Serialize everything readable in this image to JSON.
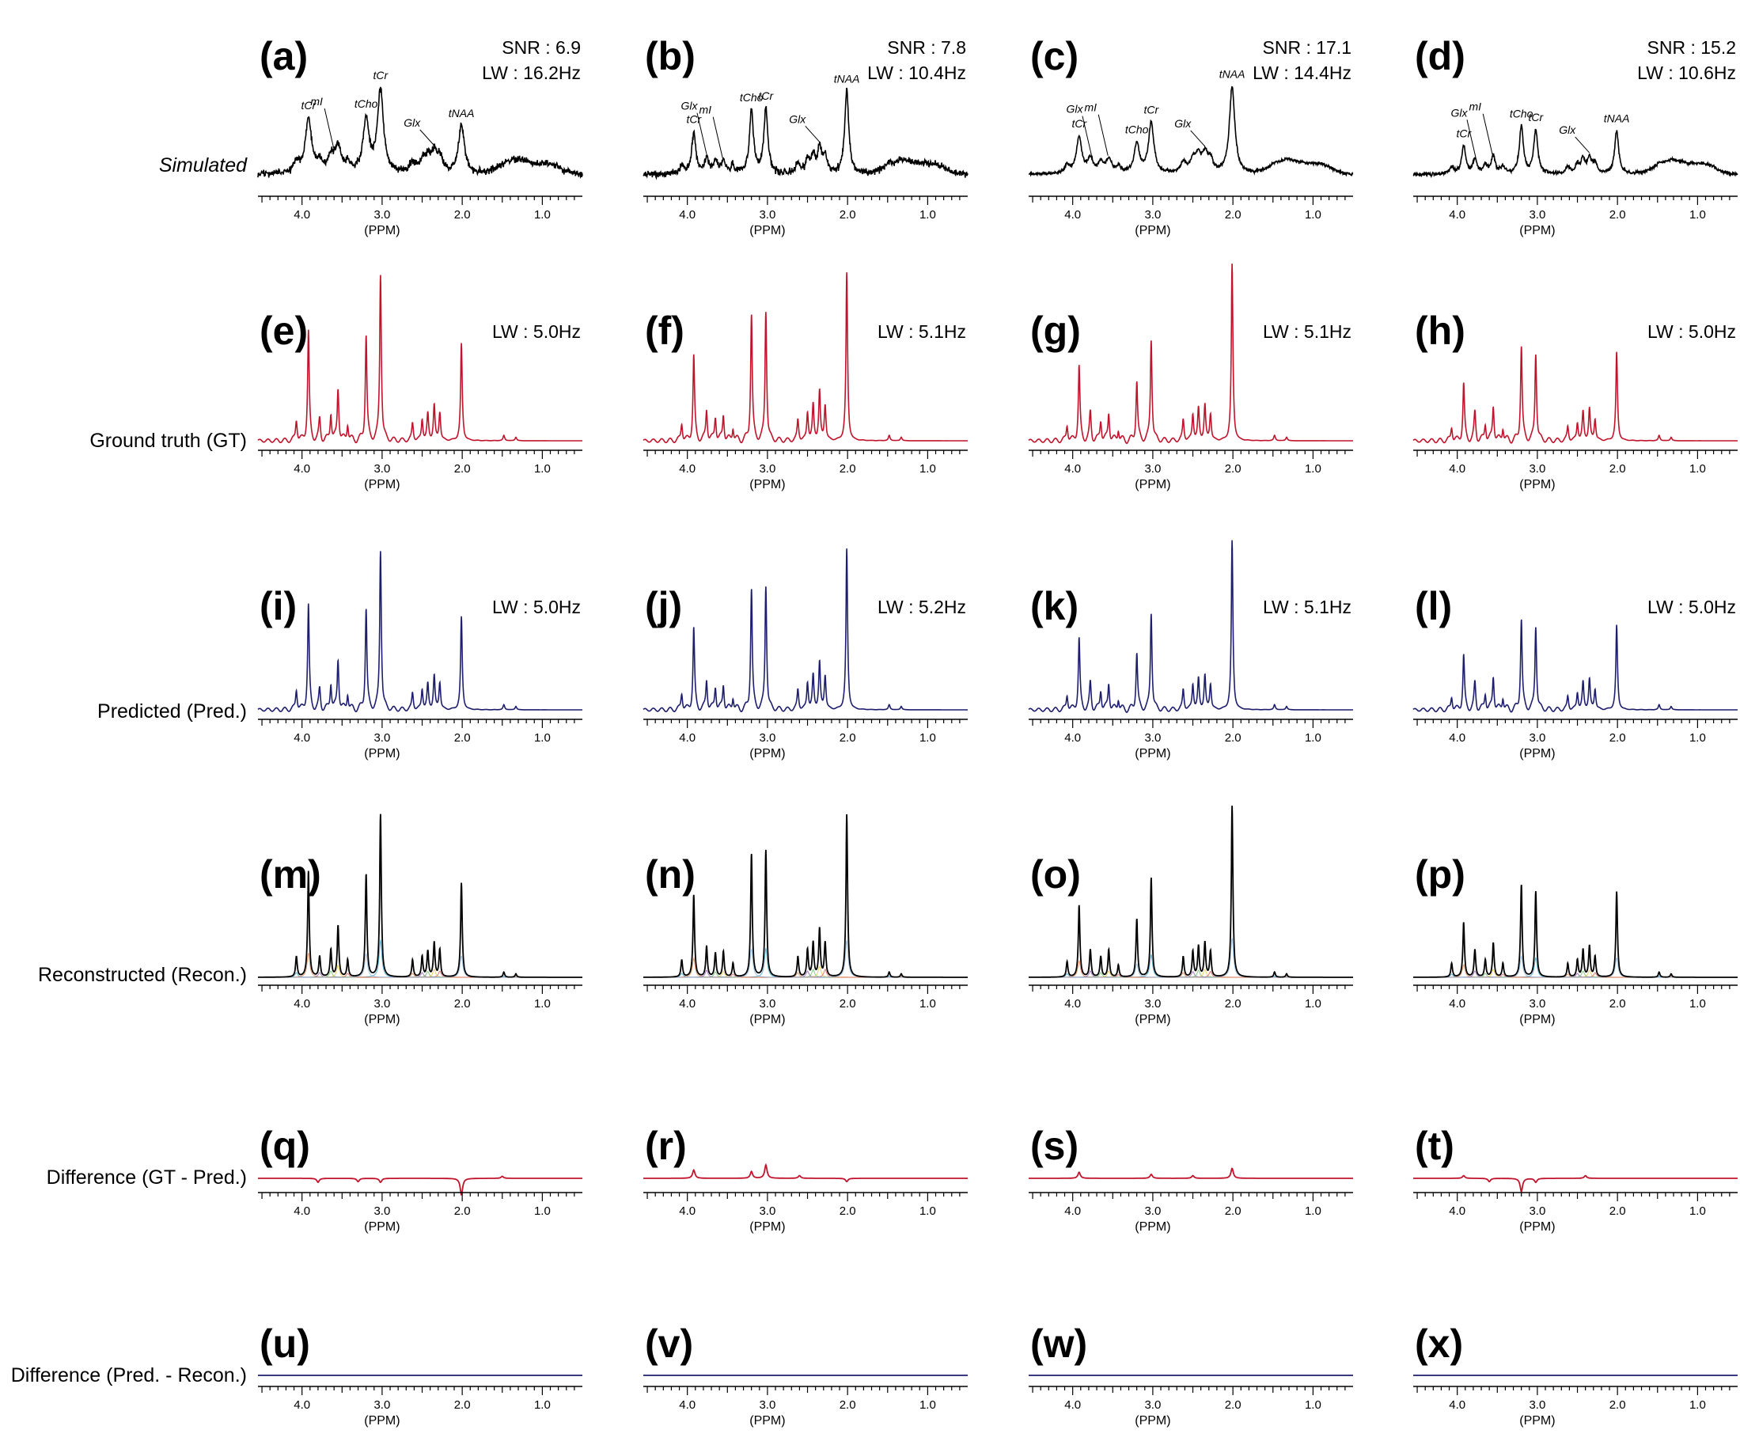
{
  "chart_data": {
    "type": "line",
    "x_axis": {
      "label": "(PPM)",
      "range": [
        4.55,
        0.5
      ],
      "reversed": true,
      "major_ticks": [
        4.0,
        3.0,
        2.0,
        1.0
      ],
      "tick_labels": [
        "4.0",
        "3.0",
        "2.0",
        "1.0"
      ]
    },
    "grid": false,
    "row_labels": [
      "Simulated",
      "Ground truth (GT)",
      "Predicted (Pred.)",
      "Reconstructed (Recon.)",
      "Difference (GT - Pred.)",
      "Difference (Pred. - Recon.)"
    ],
    "row_colors": [
      "#000000",
      "#c0142c",
      "#1e1e6e",
      "#000000",
      "#c0142c",
      "#1e1e6e"
    ],
    "panels": [
      {
        "label": "(a)",
        "row": 0,
        "col": 0,
        "snr": "SNR : 6.9",
        "lw": "LW : 16.2Hz"
      },
      {
        "label": "(b)",
        "row": 0,
        "col": 1,
        "snr": "SNR : 7.8",
        "lw": "LW : 10.4Hz"
      },
      {
        "label": "(c)",
        "row": 0,
        "col": 2,
        "snr": "SNR : 17.1",
        "lw": "LW : 14.4Hz"
      },
      {
        "label": "(d)",
        "row": 0,
        "col": 3,
        "snr": "SNR : 15.2",
        "lw": "LW : 10.6Hz"
      },
      {
        "label": "(e)",
        "row": 1,
        "col": 0,
        "lw": "LW : 5.0Hz"
      },
      {
        "label": "(f)",
        "row": 1,
        "col": 1,
        "lw": "LW : 5.1Hz"
      },
      {
        "label": "(g)",
        "row": 1,
        "col": 2,
        "lw": "LW : 5.1Hz"
      },
      {
        "label": "(h)",
        "row": 1,
        "col": 3,
        "lw": "LW : 5.0Hz"
      },
      {
        "label": "(i)",
        "row": 2,
        "col": 0,
        "lw": "LW : 5.0Hz"
      },
      {
        "label": "(j)",
        "row": 2,
        "col": 1,
        "lw": "LW : 5.2Hz"
      },
      {
        "label": "(k)",
        "row": 2,
        "col": 2,
        "lw": "LW : 5.1Hz"
      },
      {
        "label": "(l)",
        "row": 2,
        "col": 3,
        "lw": "LW : 5.0Hz"
      },
      {
        "label": "(m)",
        "row": 3,
        "col": 0
      },
      {
        "label": "(n)",
        "row": 3,
        "col": 1
      },
      {
        "label": "(o)",
        "row": 3,
        "col": 2
      },
      {
        "label": "(p)",
        "row": 3,
        "col": 3
      },
      {
        "label": "(q)",
        "row": 4,
        "col": 0
      },
      {
        "label": "(r)",
        "row": 4,
        "col": 1
      },
      {
        "label": "(s)",
        "row": 4,
        "col": 2
      },
      {
        "label": "(t)",
        "row": 4,
        "col": 3
      },
      {
        "label": "(u)",
        "row": 5,
        "col": 0
      },
      {
        "label": "(v)",
        "row": 5,
        "col": 1
      },
      {
        "label": "(w)",
        "row": 5,
        "col": 2
      },
      {
        "label": "(x)",
        "row": 5,
        "col": 3
      }
    ],
    "peak_annotations": [
      [
        {
          "text": "tCr",
          "ppm": 3.92
        },
        {
          "text": "mI",
          "ppm": 3.6
        },
        {
          "text": "tCho",
          "ppm": 3.2
        },
        {
          "text": "tCr",
          "ppm": 3.02
        },
        {
          "text": "Glx",
          "ppm": 2.35
        },
        {
          "text": "tNAA",
          "ppm": 2.01
        }
      ],
      [
        {
          "text": "tCr",
          "ppm": 3.92
        },
        {
          "text": "Glx",
          "ppm": 3.76
        },
        {
          "text": "mI",
          "ppm": 3.56
        },
        {
          "text": "tCho",
          "ppm": 3.2
        },
        {
          "text": "tCr",
          "ppm": 3.02
        },
        {
          "text": "Glx",
          "ppm": 2.35
        },
        {
          "text": "tNAA",
          "ppm": 2.01
        }
      ],
      [
        {
          "text": "tCr",
          "ppm": 3.92
        },
        {
          "text": "Glx",
          "ppm": 3.76
        },
        {
          "text": "mI",
          "ppm": 3.56
        },
        {
          "text": "tCho",
          "ppm": 3.2
        },
        {
          "text": "tCr",
          "ppm": 3.02
        },
        {
          "text": "Glx",
          "ppm": 2.35
        },
        {
          "text": "tNAA",
          "ppm": 2.01
        }
      ],
      [
        {
          "text": "tCr",
          "ppm": 3.92
        },
        {
          "text": "Glx",
          "ppm": 3.76
        },
        {
          "text": "mI",
          "ppm": 3.56
        },
        {
          "text": "tCho",
          "ppm": 3.2
        },
        {
          "text": "tCr",
          "ppm": 3.02
        },
        {
          "text": "Glx",
          "ppm": 2.35
        },
        {
          "text": "tNAA",
          "ppm": 2.01
        }
      ]
    ],
    "spectra_peaks": [
      [
        {
          "ppm": 4.07,
          "amp": 0.12
        },
        {
          "ppm": 3.92,
          "amp": 0.62
        },
        {
          "ppm": 3.78,
          "amp": 0.12
        },
        {
          "ppm": 3.64,
          "amp": 0.16
        },
        {
          "ppm": 3.55,
          "amp": 0.3
        },
        {
          "ppm": 3.43,
          "amp": 0.1
        },
        {
          "ppm": 3.2,
          "amp": 0.6
        },
        {
          "ppm": 3.02,
          "amp": 0.95
        },
        {
          "ppm": 2.62,
          "amp": 0.1
        },
        {
          "ppm": 2.5,
          "amp": 0.12
        },
        {
          "ppm": 2.43,
          "amp": 0.15
        },
        {
          "ppm": 2.35,
          "amp": 0.2
        },
        {
          "ppm": 2.28,
          "amp": 0.16
        },
        {
          "ppm": 2.01,
          "amp": 0.55
        },
        {
          "ppm": 1.48,
          "amp": 0.03
        },
        {
          "ppm": 1.33,
          "amp": 0.02
        }
      ],
      [
        {
          "ppm": 4.07,
          "amp": 0.1
        },
        {
          "ppm": 3.92,
          "amp": 0.48
        },
        {
          "ppm": 3.76,
          "amp": 0.18
        },
        {
          "ppm": 3.65,
          "amp": 0.14
        },
        {
          "ppm": 3.55,
          "amp": 0.15
        },
        {
          "ppm": 3.43,
          "amp": 0.08
        },
        {
          "ppm": 3.2,
          "amp": 0.72
        },
        {
          "ppm": 3.02,
          "amp": 0.74
        },
        {
          "ppm": 2.62,
          "amp": 0.12
        },
        {
          "ppm": 2.5,
          "amp": 0.16
        },
        {
          "ppm": 2.43,
          "amp": 0.2
        },
        {
          "ppm": 2.35,
          "amp": 0.28
        },
        {
          "ppm": 2.28,
          "amp": 0.2
        },
        {
          "ppm": 2.01,
          "amp": 0.95
        },
        {
          "ppm": 1.48,
          "amp": 0.03
        },
        {
          "ppm": 1.33,
          "amp": 0.02
        }
      ],
      [
        {
          "ppm": 4.07,
          "amp": 0.09
        },
        {
          "ppm": 3.92,
          "amp": 0.42
        },
        {
          "ppm": 3.78,
          "amp": 0.16
        },
        {
          "ppm": 3.65,
          "amp": 0.12
        },
        {
          "ppm": 3.55,
          "amp": 0.16
        },
        {
          "ppm": 3.43,
          "amp": 0.07
        },
        {
          "ppm": 3.2,
          "amp": 0.34
        },
        {
          "ppm": 3.02,
          "amp": 0.58
        },
        {
          "ppm": 2.62,
          "amp": 0.12
        },
        {
          "ppm": 2.5,
          "amp": 0.15
        },
        {
          "ppm": 2.43,
          "amp": 0.18
        },
        {
          "ppm": 2.35,
          "amp": 0.2
        },
        {
          "ppm": 2.28,
          "amp": 0.15
        },
        {
          "ppm": 2.01,
          "amp": 1.0
        },
        {
          "ppm": 1.48,
          "amp": 0.03
        },
        {
          "ppm": 1.33,
          "amp": 0.02
        }
      ],
      [
        {
          "ppm": 4.07,
          "amp": 0.08
        },
        {
          "ppm": 3.92,
          "amp": 0.32
        },
        {
          "ppm": 3.78,
          "amp": 0.16
        },
        {
          "ppm": 3.65,
          "amp": 0.1
        },
        {
          "ppm": 3.55,
          "amp": 0.2
        },
        {
          "ppm": 3.43,
          "amp": 0.08
        },
        {
          "ppm": 3.2,
          "amp": 0.54
        },
        {
          "ppm": 3.02,
          "amp": 0.5
        },
        {
          "ppm": 2.62,
          "amp": 0.08
        },
        {
          "ppm": 2.5,
          "amp": 0.1
        },
        {
          "ppm": 2.43,
          "amp": 0.16
        },
        {
          "ppm": 2.35,
          "amp": 0.18
        },
        {
          "ppm": 2.28,
          "amp": 0.12
        },
        {
          "ppm": 2.01,
          "amp": 0.5
        },
        {
          "ppm": 1.48,
          "amp": 0.03
        },
        {
          "ppm": 1.33,
          "amp": 0.02
        }
      ]
    ],
    "difference_bumps": [
      [
        {
          "ppm": 3.8,
          "amp": -0.012
        },
        {
          "ppm": 3.3,
          "amp": -0.01
        },
        {
          "ppm": 3.02,
          "amp": -0.012
        },
        {
          "ppm": 2.01,
          "amp": -0.05
        },
        {
          "ppm": 1.5,
          "amp": 0.006
        }
      ],
      [
        {
          "ppm": 3.92,
          "amp": 0.025
        },
        {
          "ppm": 3.2,
          "amp": 0.02
        },
        {
          "ppm": 3.02,
          "amp": 0.04
        },
        {
          "ppm": 2.6,
          "amp": 0.008
        },
        {
          "ppm": 2.01,
          "amp": -0.01
        }
      ],
      [
        {
          "ppm": 3.92,
          "amp": 0.018
        },
        {
          "ppm": 3.02,
          "amp": 0.012
        },
        {
          "ppm": 2.5,
          "amp": 0.008
        },
        {
          "ppm": 2.01,
          "amp": 0.03
        }
      ],
      [
        {
          "ppm": 3.92,
          "amp": 0.008
        },
        {
          "ppm": 3.6,
          "amp": -0.01
        },
        {
          "ppm": 3.2,
          "amp": -0.04
        },
        {
          "ppm": 3.02,
          "amp": -0.012
        },
        {
          "ppm": 2.4,
          "amp": 0.008
        }
      ]
    ],
    "recon_components": [
      "#2aa0c8",
      "#e07b3c",
      "#8a4fb0",
      "#5cb85c",
      "#e8c23a",
      "#d9534f",
      "#7fb3e0"
    ]
  }
}
